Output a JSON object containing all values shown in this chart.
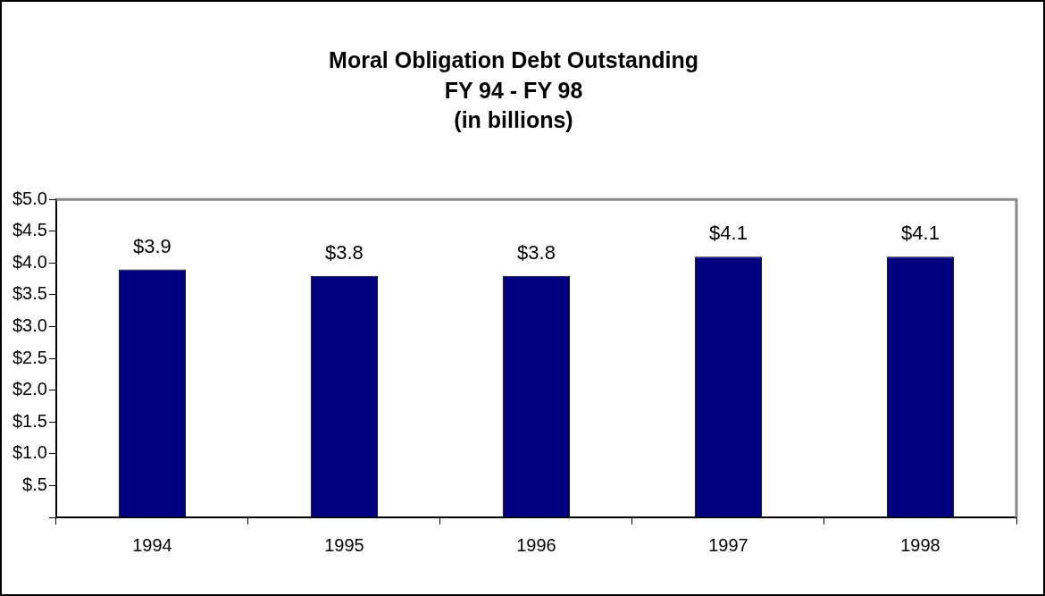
{
  "chart_data": {
    "type": "bar",
    "title": "Moral Obligation Debt Outstanding",
    "subtitle": "FY 94 - FY 98\n(in billions)",
    "categories": [
      "1994",
      "1995",
      "1996",
      "1997",
      "1998"
    ],
    "values": [
      3.9,
      3.8,
      3.8,
      4.1,
      4.1
    ],
    "value_labels": [
      "$3.9",
      "$3.8",
      "$3.8",
      "$4.1",
      "$4.1"
    ],
    "color": "#000080",
    "ylim": [
      0,
      5
    ],
    "yticks": [
      {
        "value": 0,
        "label": null
      },
      {
        "value": 0.5,
        "label": "$.5"
      },
      {
        "value": 1,
        "label": "$1.0"
      },
      {
        "value": 1.5,
        "label": "$1.5"
      },
      {
        "value": 2,
        "label": "$2.0"
      },
      {
        "value": 2.5,
        "label": "$2.5"
      },
      {
        "value": 3,
        "label": "$3.0"
      },
      {
        "value": 3.5,
        "label": "$3.5"
      },
      {
        "value": 4,
        "label": "$4.0"
      },
      {
        "value": 4.5,
        "label": "$4.5"
      },
      {
        "value": 5,
        "label": "$5.0"
      }
    ],
    "grid": false,
    "legend": false
  }
}
